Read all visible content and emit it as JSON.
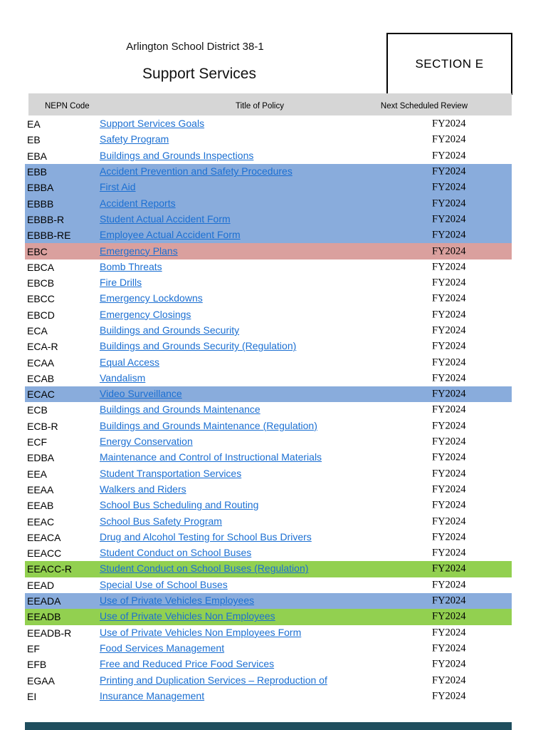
{
  "page": {
    "district": "Arlington School District 38-1",
    "title": "Support Services",
    "section_label": "SECTION E"
  },
  "table": {
    "headers": {
      "code": "NEPN Code",
      "title": "Title of Policy",
      "review": "Next Scheduled Review"
    },
    "rows": [
      {
        "code": "EA",
        "title": "Support Services Goals",
        "review": "FY2024",
        "highlight": "none"
      },
      {
        "code": "EB",
        "title": "Safety Program",
        "review": "FY2024",
        "highlight": "none"
      },
      {
        "code": "EBA",
        "title": "Buildings and Grounds Inspections",
        "review": "FY2024",
        "highlight": "none"
      },
      {
        "code": "EBB",
        "title": "Accident Prevention and Safety Procedures",
        "review": "FY2024",
        "highlight": "blue"
      },
      {
        "code": "EBBA",
        "title": "First Aid",
        "review": "FY2024",
        "highlight": "blue"
      },
      {
        "code": "EBBB",
        "title": "Accident Reports",
        "review": "FY2024",
        "highlight": "blue"
      },
      {
        "code": "EBBB-R",
        "title": "Student Actual Accident Form",
        "review": "FY2024",
        "highlight": "blue"
      },
      {
        "code": "EBBB-RE",
        "title": "Employee Actual Accident Form",
        "review": "FY2024",
        "highlight": "blue"
      },
      {
        "code": "EBC",
        "title": "Emergency Plans",
        "review": "FY2024",
        "highlight": "red"
      },
      {
        "code": "EBCA",
        "title": "Bomb Threats",
        "review": "FY2024",
        "highlight": "none"
      },
      {
        "code": "EBCB",
        "title": "Fire Drills",
        "review": "FY2024",
        "highlight": "none"
      },
      {
        "code": "EBCC",
        "title": "Emergency Lockdowns",
        "review": "FY2024",
        "highlight": "none"
      },
      {
        "code": "EBCD",
        "title": "Emergency Closings",
        "review": "FY2024",
        "highlight": "none"
      },
      {
        "code": "ECA",
        "title": "Buildings and Grounds Security",
        "review": "FY2024",
        "highlight": "none"
      },
      {
        "code": "ECA-R",
        "title": "Buildings and Grounds Security (Regulation)",
        "review": "FY2024",
        "highlight": "none"
      },
      {
        "code": "ECAA",
        "title": "Equal Access",
        "review": "FY2024",
        "highlight": "none"
      },
      {
        "code": "ECAB",
        "title": "Vandalism",
        "review": "FY2024",
        "highlight": "none"
      },
      {
        "code": "ECAC",
        "title": "Video Surveillance",
        "review": "FY2024",
        "highlight": "blue"
      },
      {
        "code": "ECB",
        "title": "Buildings and Grounds Maintenance",
        "review": "FY2024",
        "highlight": "none"
      },
      {
        "code": "ECB-R",
        "title": "Buildings and Grounds Maintenance (Regulation)",
        "review": "FY2024",
        "highlight": "none"
      },
      {
        "code": "ECF",
        "title": "Energy Conservation",
        "review": "FY2024",
        "highlight": "none"
      },
      {
        "code": "EDBA",
        "title": "Maintenance and Control of Instructional Materials",
        "review": "FY2024",
        "highlight": "none"
      },
      {
        "code": "EEA",
        "title": "Student Transportation Services",
        "review": "FY2024",
        "highlight": "none"
      },
      {
        "code": "EEAA",
        "title": "Walkers and Riders",
        "review": "FY2024",
        "highlight": "none"
      },
      {
        "code": "EEAB",
        "title": "School Bus Scheduling and Routing",
        "review": "FY2024",
        "highlight": "none"
      },
      {
        "code": "EEAC",
        "title": "School Bus Safety Program",
        "review": "FY2024",
        "highlight": "none"
      },
      {
        "code": "EEACA",
        "title": "Drug and Alcohol Testing for School Bus Drivers",
        "review": "FY2024",
        "highlight": "none"
      },
      {
        "code": "EEACC",
        "title": "Student Conduct on School Buses",
        "review": "FY2024",
        "highlight": "none"
      },
      {
        "code": "EEACC-R",
        "title": "Student Conduct on School Buses (Regulation)",
        "review": "FY2024",
        "highlight": "green"
      },
      {
        "code": "EEAD",
        "title": "Special Use of School Buses",
        "review": "FY2024",
        "highlight": "none"
      },
      {
        "code": "EEADA",
        "title": "Use of Private Vehicles Employees",
        "review": "FY2024",
        "highlight": "blue"
      },
      {
        "code": "EEADB",
        "title": "Use of Private Vehicles Non Employees",
        "review": "FY2024",
        "highlight": "green"
      },
      {
        "code": "EEADB-R",
        "title": "Use of Private Vehicles Non Employees Form",
        "review": "FY2024",
        "highlight": "none"
      },
      {
        "code": "EF",
        "title": "Food Services Management",
        "review": "FY2024",
        "highlight": "none"
      },
      {
        "code": "EFB",
        "title": "Free and Reduced Price Food Services",
        "review": "FY2024",
        "highlight": "none"
      },
      {
        "code": "EGAA",
        "title": "Printing and Duplication Services – Reproduction of",
        "review": "FY2024",
        "highlight": "none"
      },
      {
        "code": "EI",
        "title": "Insurance Management",
        "review": "FY2024",
        "highlight": "none"
      }
    ]
  },
  "colors": {
    "blue_highlight": "#89acdc",
    "red_highlight": "#daa09e",
    "green_highlight": "#92d050",
    "header_bar": "#d6d6d6",
    "link": "#1b6fd2",
    "section_border": "#000000",
    "bottom_bar": "#1f4e5e"
  }
}
